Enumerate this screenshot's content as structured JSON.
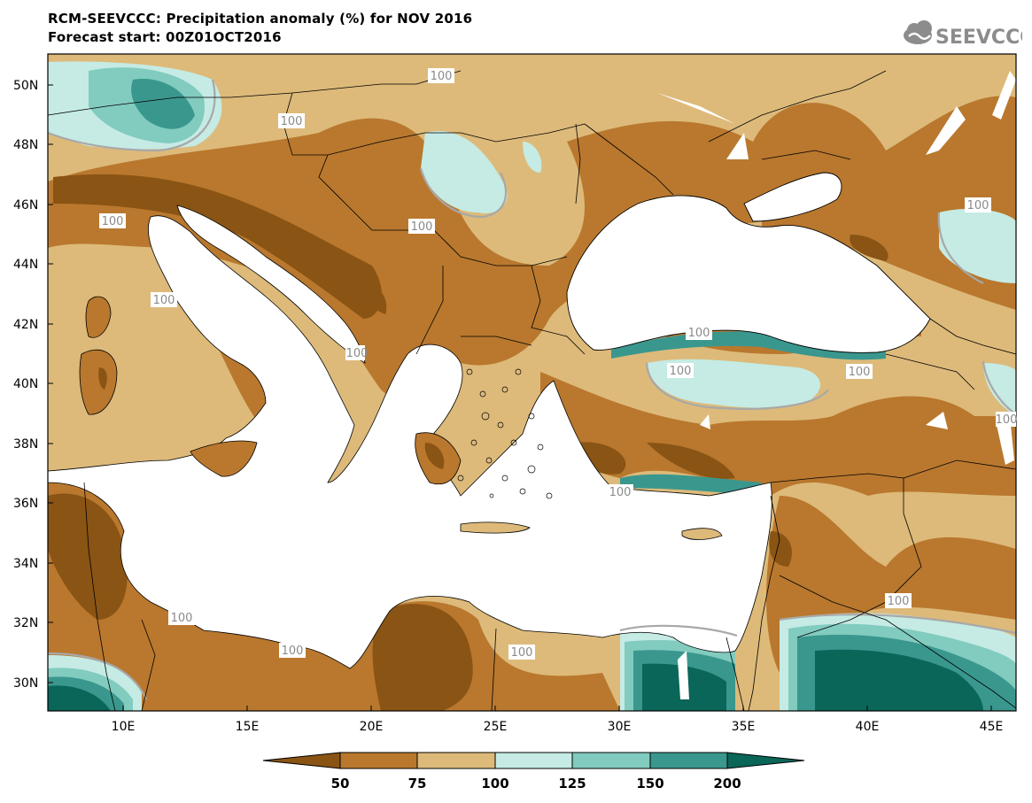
{
  "header": {
    "title": "RCM-SEEVCCC: Precipitation anomaly (%) for NOV 2016",
    "subtitle": "Forecast start: 00Z01OCT2016",
    "logo_text": "SEEVCCC"
  },
  "map": {
    "latitude_labels": [
      "50N",
      "48N",
      "46N",
      "44N",
      "42N",
      "40N",
      "38N",
      "36N",
      "34N",
      "32N",
      "30N"
    ],
    "longitude_labels": [
      "10E",
      "15E",
      "20E",
      "25E",
      "30E",
      "35E",
      "40E",
      "45E"
    ],
    "contour_labels": [
      "100",
      "100",
      "100",
      "100",
      "100",
      "100",
      "100",
      "100",
      "100",
      "100",
      "100",
      "100",
      "100",
      "100",
      "100",
      "100"
    ]
  },
  "colorbar": {
    "tick_labels": [
      "50",
      "75",
      "100",
      "125",
      "150",
      "200"
    ],
    "colors": [
      "#8a5414",
      "#b9782e",
      "#ddba7a",
      "#c5ebe4",
      "#82cbbf",
      "#3a978e",
      "#0a6659"
    ]
  }
}
